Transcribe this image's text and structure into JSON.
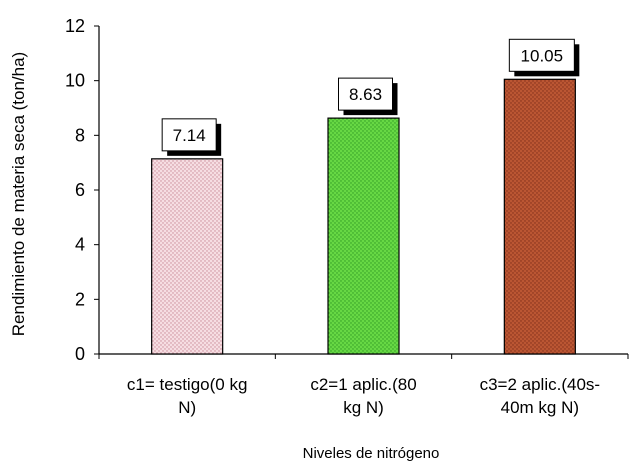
{
  "chart_data": {
    "type": "bar",
    "categories": [
      [
        "c1= testigo(0 kg",
        "N)"
      ],
      [
        "c2=1 aplic.(80",
        "kg N)"
      ],
      [
        "c3=2 aplic.(40s-",
        "40m kg N)"
      ]
    ],
    "values": [
      7.14,
      8.63,
      10.05
    ],
    "data_labels": [
      "7.14",
      "8.63",
      "10.05"
    ],
    "xlabel": "Niveles de nitrógeno",
    "ylabel": "Rendimiento de materia seca (ton/ha)",
    "ylim": [
      0,
      12
    ],
    "yticks": [
      0,
      2,
      4,
      6,
      8,
      10,
      12
    ],
    "grid": false,
    "legend": "none",
    "colors": {
      "bars": [
        "#f2c7cf",
        "#58d13a",
        "#b34d2c"
      ],
      "bar_border": "#000000",
      "label_box": "#ffffff",
      "label_shadow": "#000000",
      "axis": "#000000",
      "text": "#000000"
    },
    "fills": [
      "dotted-pink",
      "dotted-green",
      "dotted-brown"
    ]
  }
}
